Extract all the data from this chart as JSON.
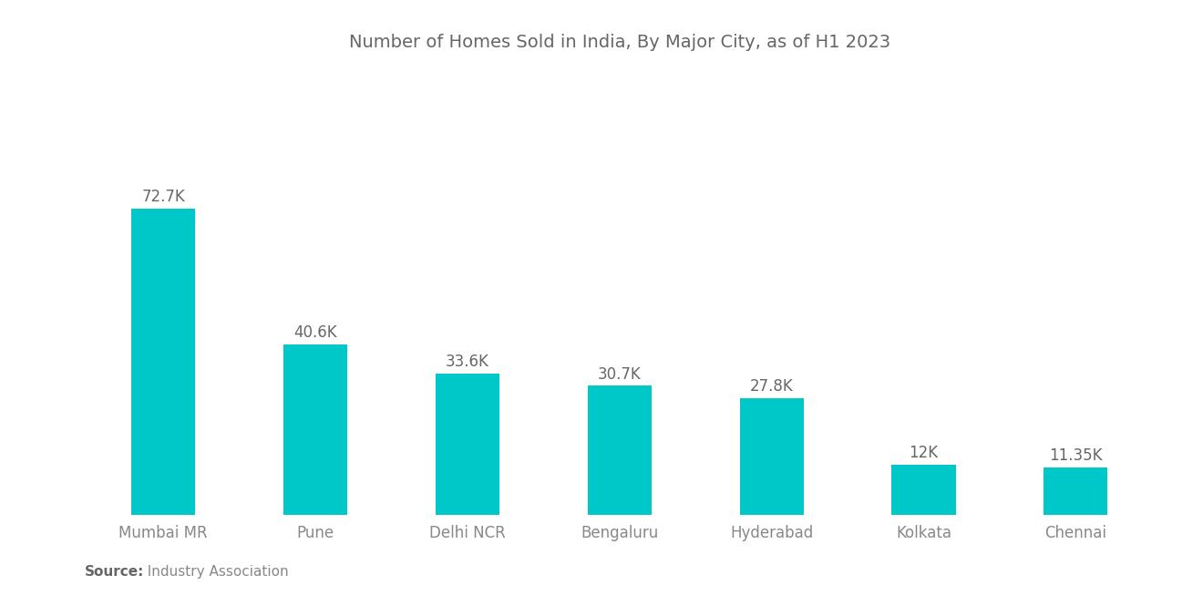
{
  "title": "Number of Homes Sold in India, By Major City, as of H1 2023",
  "categories": [
    "Mumbai MR",
    "Pune",
    "Delhi NCR",
    "Bengaluru",
    "Hyderabad",
    "Kolkata",
    "Chennai"
  ],
  "values": [
    72.7,
    40.6,
    33.6,
    30.7,
    27.8,
    12.0,
    11.35
  ],
  "labels": [
    "72.7K",
    "40.6K",
    "33.6K",
    "30.7K",
    "27.8K",
    "12K",
    "11.35K"
  ],
  "bar_color": "#00C8C8",
  "background_color": "#ffffff",
  "title_color": "#666666",
  "label_color": "#666666",
  "tick_color": "#888888",
  "source_bold": "Source:",
  "source_normal": "  Industry Association",
  "title_fontsize": 14,
  "label_fontsize": 12,
  "tick_fontsize": 12,
  "source_fontsize": 11,
  "bar_width": 0.42,
  "ylim": [
    0,
    105
  ]
}
